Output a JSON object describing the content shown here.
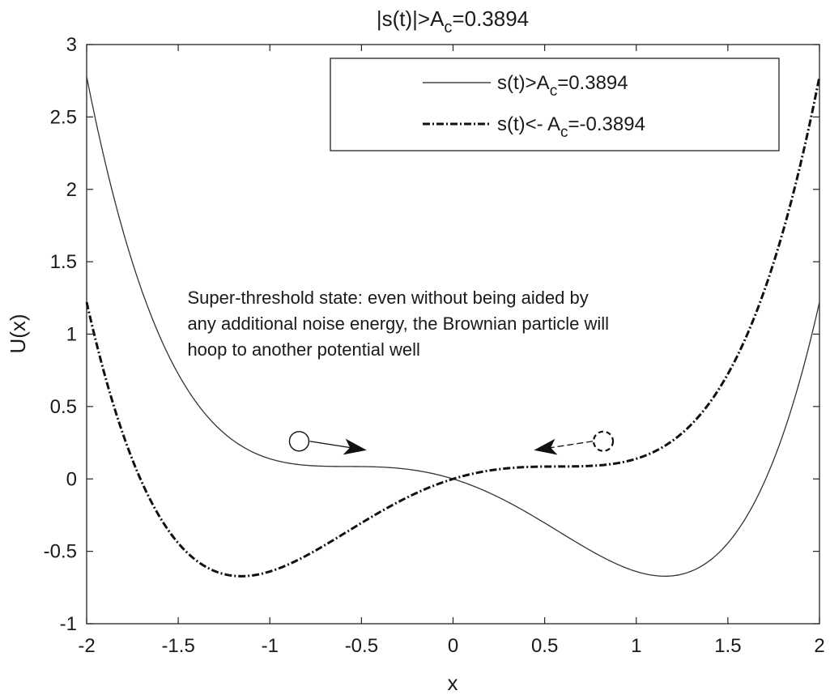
{
  "chart_data": {
    "type": "line",
    "title": {
      "main": "|s(t)|>A",
      "sub": "c",
      "tail": "=0.3894"
    },
    "xlabel": "x",
    "ylabel": "U(x)",
    "xlim": [
      -2,
      2
    ],
    "ylim": [
      -1,
      3
    ],
    "xticks": [
      "-2",
      "-1.5",
      "-1",
      "-0.5",
      "0",
      "0.5",
      "1",
      "1.5",
      "2"
    ],
    "yticks": [
      "-1",
      "-0.5",
      "0",
      "0.5",
      "1",
      "1.5",
      "2",
      "2.5",
      "3"
    ],
    "xtick_values": [
      -2,
      -1.5,
      -1,
      -0.5,
      0,
      0.5,
      1,
      1.5,
      2
    ],
    "ytick_values": [
      -1,
      -0.5,
      0,
      0.5,
      1,
      1.5,
      2,
      2.5,
      3
    ],
    "grid": false,
    "legend_position": "top-right",
    "series": [
      {
        "legend": {
          "main": "s(t)>A",
          "sub": "c",
          "tail": "=0.3894"
        },
        "style": "solid",
        "formula_params": {
          "a": 1,
          "b": 1,
          "A": 0.3894
        },
        "x": [
          -2.0,
          -1.8,
          -1.6,
          -1.4,
          -1.2,
          -1.0,
          -0.8,
          -0.6,
          -0.4,
          -0.2,
          0.0,
          0.2,
          0.4,
          0.6,
          0.8,
          1.0,
          1.2,
          1.4,
          1.6,
          1.8,
          2.0
        ],
        "y": [
          3.0,
          2.01,
          1.26,
          0.72,
          0.36,
          0.2,
          0.16,
          0.15,
          0.13,
          0.07,
          0.0,
          -0.09,
          -0.21,
          -0.38,
          -0.52,
          -0.68,
          -0.8,
          -0.65,
          -0.27,
          0.5,
          1.0
        ]
      },
      {
        "legend": {
          "main": "s(t)<- A",
          "sub": "c",
          "tail": "=-0.3894"
        },
        "style": "dashdot",
        "formula_params": {
          "a": 1,
          "b": 1,
          "A": -0.3894
        },
        "x": [
          -2.0,
          -1.8,
          -1.6,
          -1.4,
          -1.2,
          -1.0,
          -0.8,
          -0.6,
          -0.4,
          -0.2,
          0.0,
          0.2,
          0.4,
          0.6,
          0.8,
          1.0,
          1.2,
          1.4,
          1.6,
          1.8,
          2.0
        ],
        "y": [
          1.0,
          0.05,
          -0.53,
          -0.75,
          -0.8,
          -0.73,
          -0.57,
          -0.38,
          -0.21,
          -0.09,
          0.0,
          0.07,
          0.13,
          0.15,
          0.16,
          0.2,
          0.36,
          0.72,
          1.26,
          2.01,
          3.0
        ]
      }
    ],
    "annotation": {
      "lines": [
        "Super-threshold state: even without being aided by",
        "any additional noise energy, the Brownian particle will",
        "hoop to another potential well"
      ],
      "x": -1.45,
      "y": 1.21
    },
    "particles": [
      {
        "x": -0.84,
        "y": 0.26,
        "style": "solid",
        "arrow_to": [
          -0.48,
          0.2
        ]
      },
      {
        "x": 0.82,
        "y": 0.26,
        "style": "dashed",
        "arrow_to": [
          0.45,
          0.2
        ]
      }
    ]
  }
}
